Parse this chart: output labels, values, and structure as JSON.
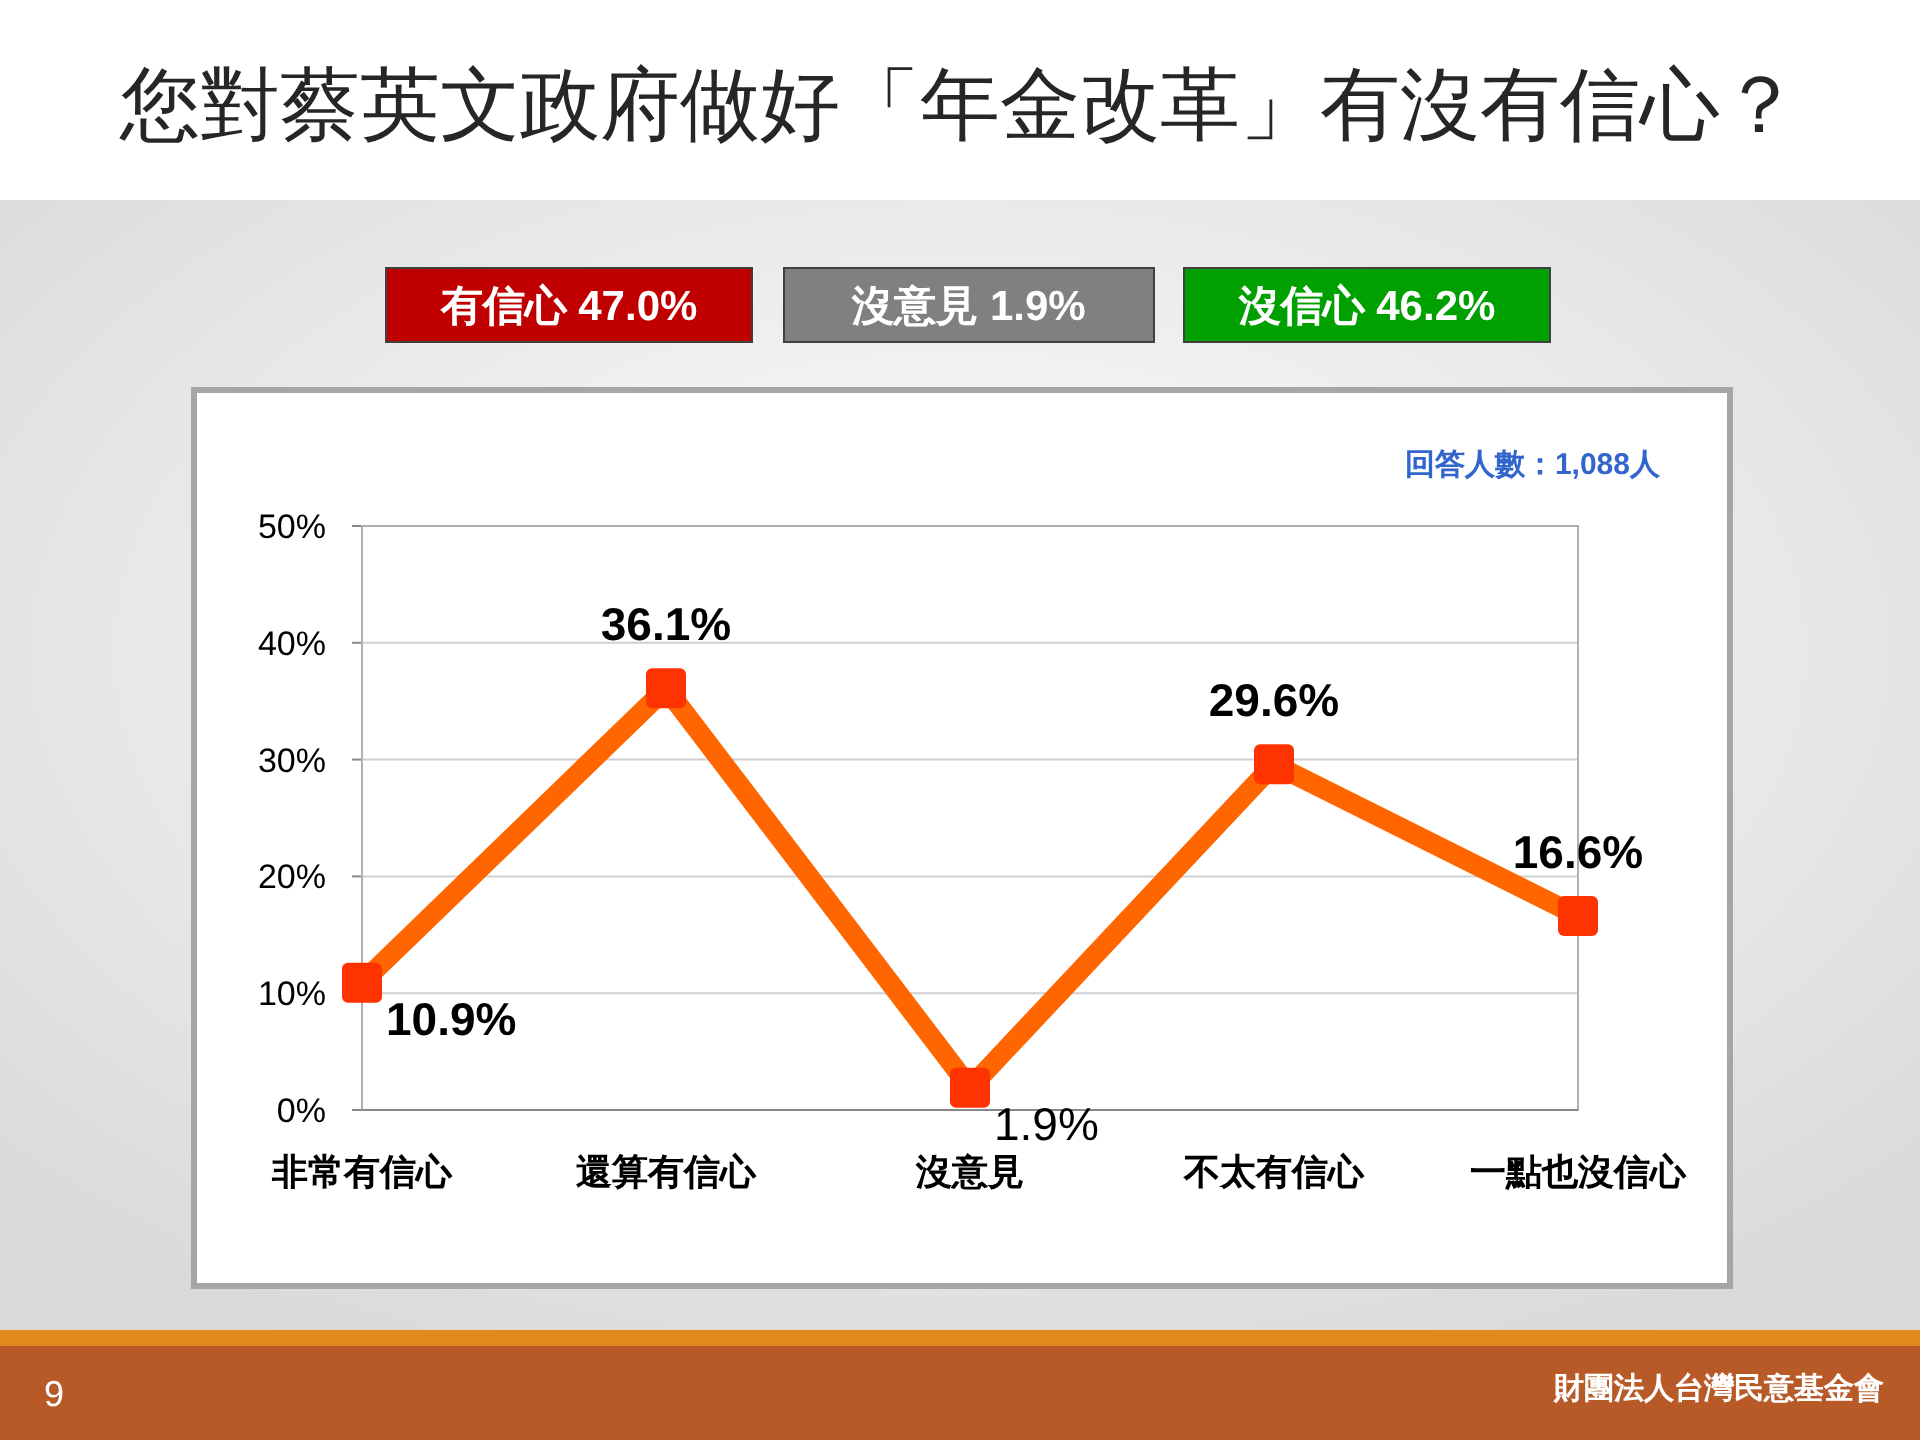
{
  "chart_data": {
    "type": "line",
    "title": "您對蔡英文政府做好「年金改革」有沒有信心？",
    "categories": [
      "非常有信心",
      "還算有信心",
      "沒意見",
      "不太有信心",
      "一點也沒信心"
    ],
    "series": [
      {
        "color": "#ff6600",
        "values": [
          10.9,
          36.1,
          1.9,
          29.6,
          16.6
        ],
        "value_labels": [
          "10.9%",
          "36.1%",
          "1.9%",
          "29.6%",
          "16.6%"
        ]
      }
    ],
    "ylim": [
      0,
      50
    ],
    "yticks": [
      {
        "value": 0,
        "label": "0%"
      },
      {
        "value": 10,
        "label": "10%"
      },
      {
        "value": 20,
        "label": "20%"
      },
      {
        "value": 30,
        "label": "30%"
      },
      {
        "value": 40,
        "label": "40%"
      },
      {
        "value": 50,
        "label": "50%"
      }
    ],
    "grid": "y",
    "marker": "square",
    "line_style": "solid",
    "annotations": [
      "有信心 47.0%",
      "沒意見 1.9%",
      "沒信心 46.2%",
      "回答人數：1,088人",
      "9",
      "財團法人台灣民意基金會"
    ]
  }
}
